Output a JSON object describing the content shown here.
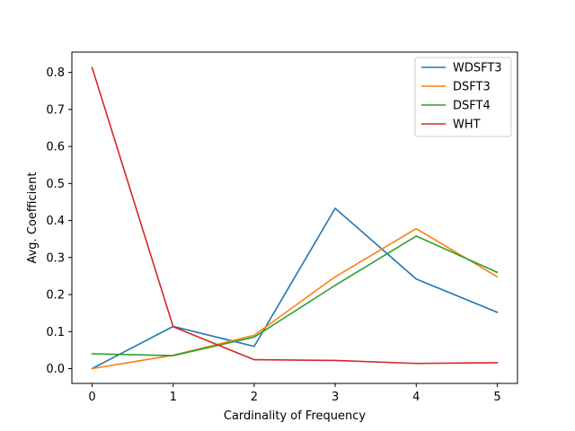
{
  "chart_data": {
    "type": "line",
    "xlabel": "Cardinality of Frequency",
    "ylabel": "Avg. Coefficient",
    "x": [
      0,
      1,
      2,
      3,
      4,
      5
    ],
    "xlim": [
      -0.25,
      5.25
    ],
    "ylim": [
      -0.04,
      0.855
    ],
    "xticks": [
      "0",
      "1",
      "2",
      "3",
      "4",
      "5"
    ],
    "yticks": [
      0.0,
      0.1,
      0.2,
      0.3,
      0.4,
      0.5,
      0.6,
      0.7,
      0.8
    ],
    "ytick_labels": [
      "0.0",
      "0.1",
      "0.2",
      "0.3",
      "0.4",
      "0.5",
      "0.6",
      "0.7",
      "0.8"
    ],
    "grid": false,
    "legend_position": "top-right",
    "series": [
      {
        "name": "WDSFT3",
        "color": "#1f77b4",
        "values": [
          0.0,
          0.114,
          0.06,
          0.433,
          0.242,
          0.152
        ]
      },
      {
        "name": "DSFT3",
        "color": "#ff7f0e",
        "values": [
          0.0,
          0.036,
          0.09,
          0.248,
          0.378,
          0.248
        ]
      },
      {
        "name": "DSFT4",
        "color": "#2ca02c",
        "values": [
          0.04,
          0.035,
          0.085,
          0.225,
          0.358,
          0.26
        ]
      },
      {
        "name": "WHT",
        "color": "#d62728",
        "values": [
          0.813,
          0.113,
          0.024,
          0.022,
          0.014,
          0.016
        ]
      }
    ]
  }
}
